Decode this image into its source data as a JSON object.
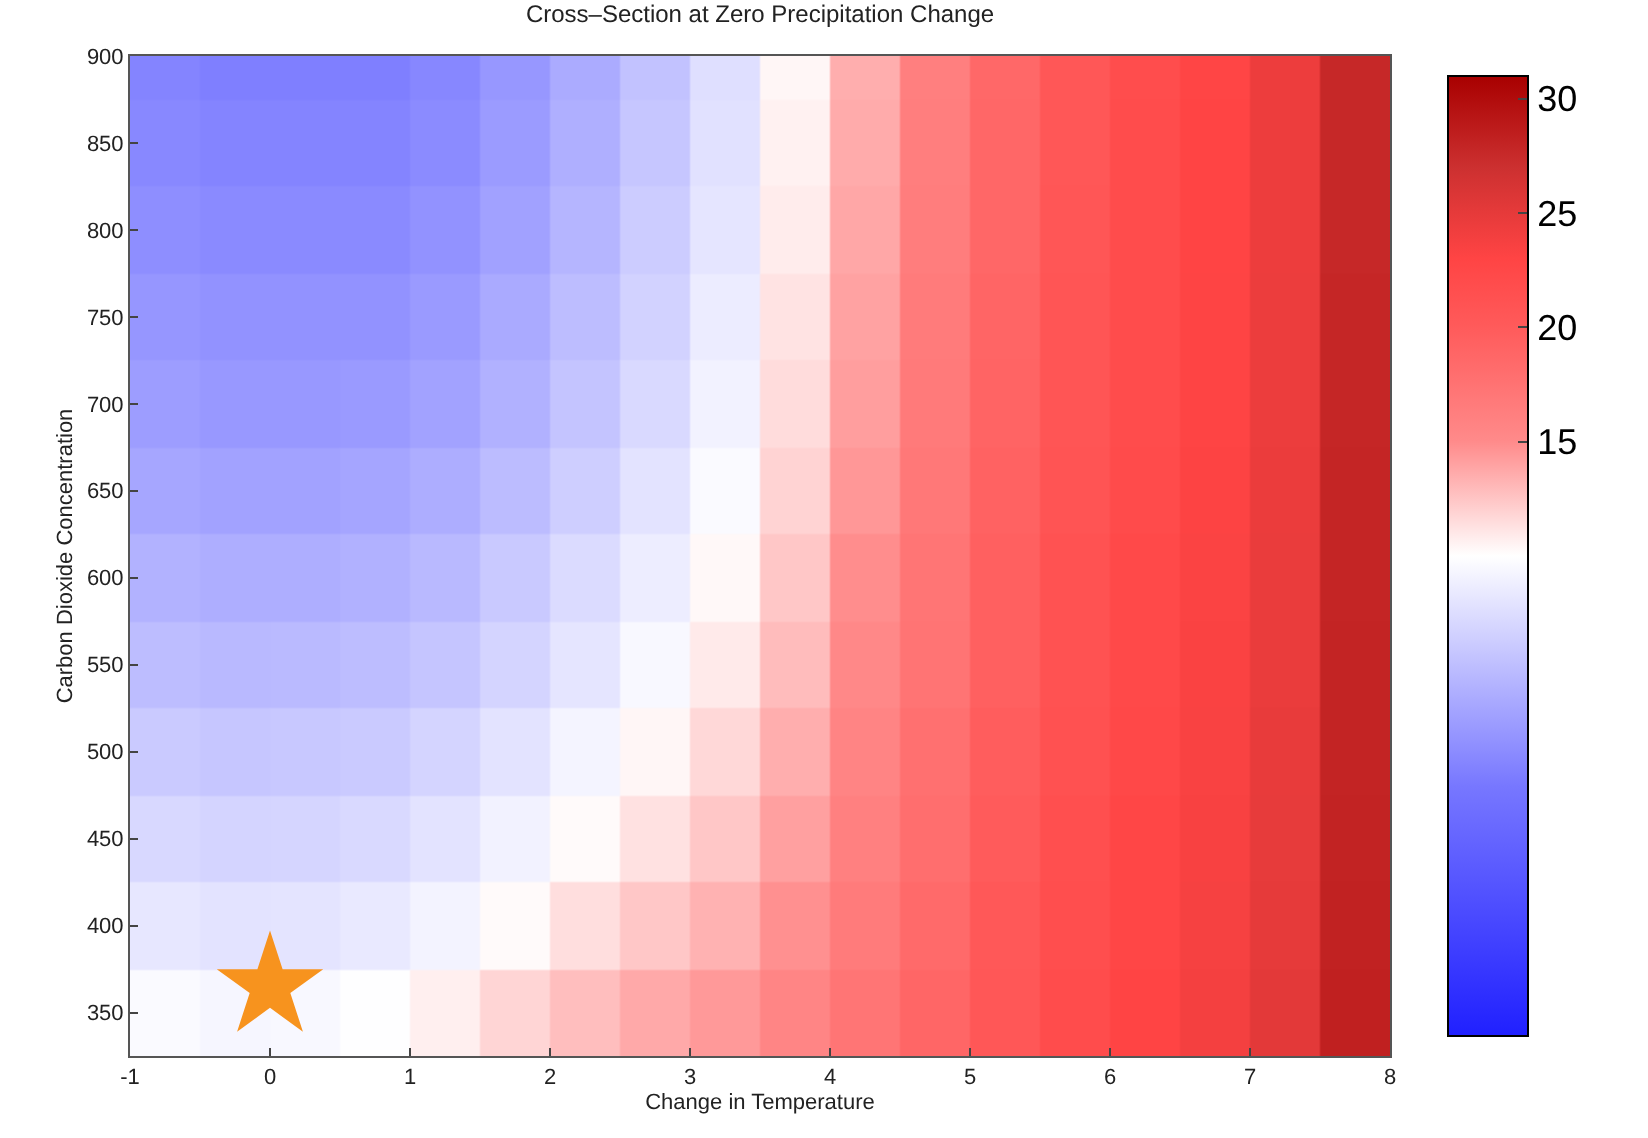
{
  "chart_data": {
    "type": "heatmap",
    "title": "Cross–Section at Zero Precipitation Change",
    "xlabel": "Change in Temperature",
    "ylabel": "Carbon Dioxide Concentration",
    "x": [
      -0.75,
      -0.25,
      0.25,
      0.75,
      1.25,
      1.75,
      2.25,
      2.75,
      3.25,
      3.75,
      4.25,
      4.75,
      5.25,
      5.75,
      6.25,
      6.75,
      7.25,
      7.75
    ],
    "xlim": [
      -1,
      8
    ],
    "xticks": [
      -1,
      0,
      1,
      2,
      3,
      4,
      5,
      6,
      7,
      8
    ],
    "ylim": [
      325,
      900
    ],
    "yticks": [
      350,
      400,
      450,
      500,
      550,
      600,
      650,
      700,
      750,
      800,
      850,
      900
    ],
    "cells": [
      [
        0.9,
        0.5,
        0.5,
        0.5,
        1.1,
        2.3,
        3.8,
        5.5,
        7.6,
        10.4,
        13.5,
        16.2,
        18.6,
        20.5,
        21.8,
        22.9,
        24.4,
        27.7
      ],
      [
        1.2,
        0.9,
        0.9,
        0.9,
        1.4,
        2.6,
        4.1,
        5.8,
        7.8,
        10.6,
        13.6,
        16.3,
        18.7,
        20.5,
        21.9,
        23.0,
        24.4,
        27.7
      ],
      [
        1.6,
        1.3,
        1.3,
        1.3,
        1.9,
        3.0,
        4.5,
        6.2,
        8.1,
        10.8,
        13.8,
        16.4,
        18.7,
        20.6,
        21.9,
        23.0,
        24.4,
        27.7
      ],
      [
        2.2,
        1.9,
        1.9,
        1.9,
        2.5,
        3.7,
        5.1,
        6.7,
        8.6,
        11.2,
        14.0,
        16.6,
        18.9,
        20.7,
        22.0,
        23.1,
        24.5,
        27.8
      ],
      [
        2.7,
        2.4,
        2.4,
        2.5,
        3.1,
        4.2,
        5.6,
        7.2,
        9.0,
        11.5,
        14.2,
        16.7,
        19.0,
        20.8,
        22.0,
        23.1,
        24.5,
        27.8
      ],
      [
        3.4,
        3.1,
        3.1,
        3.3,
        3.9,
        5.0,
        6.4,
        7.9,
        9.6,
        11.9,
        14.5,
        16.9,
        19.2,
        20.9,
        22.1,
        23.2,
        24.6,
        27.9
      ],
      [
        4.3,
        4.0,
        4.0,
        4.2,
        4.8,
        6.0,
        7.3,
        8.7,
        10.3,
        12.4,
        14.9,
        17.2,
        19.4,
        21.1,
        22.3,
        23.3,
        24.7,
        27.9
      ],
      [
        5.1,
        4.8,
        4.9,
        5.1,
        5.7,
        6.8,
        8.1,
        9.5,
        10.9,
        12.9,
        15.2,
        17.4,
        19.5,
        21.2,
        22.4,
        23.4,
        24.7,
        28.0
      ],
      [
        6.1,
        5.8,
        5.9,
        6.1,
        6.8,
        7.9,
        9.2,
        10.4,
        11.7,
        13.5,
        15.7,
        17.8,
        19.8,
        21.3,
        22.5,
        23.5,
        24.8,
        28.0
      ],
      [
        7.1,
        6.8,
        6.9,
        7.2,
        7.9,
        9.0,
        10.2,
        11.3,
        12.4,
        14.1,
        16.1,
        18.0,
        20.0,
        21.5,
        22.7,
        23.6,
        24.9,
        28.1
      ],
      [
        8.2,
        7.9,
        8.0,
        8.4,
        9.1,
        10.2,
        11.4,
        12.4,
        13.3,
        14.8,
        16.6,
        18.4,
        20.3,
        21.7,
        22.8,
        23.7,
        25.0,
        28.2
      ],
      [
        9.6,
        9.3,
        9.5,
        9.9,
        10.7,
        11.8,
        12.8,
        13.7,
        14.4,
        15.6,
        17.2,
        18.8,
        20.5,
        22.0,
        23.0,
        23.9,
        25.2,
        28.3
      ]
    ],
    "clim": [
      -11,
      31
    ],
    "cticks": [
      15,
      20,
      25,
      30
    ],
    "series": [
      {
        "type": "scatter",
        "x": [
          0
        ],
        "values": [
          365
        ],
        "color": "#f7931e",
        "marker": "star"
      }
    ]
  }
}
